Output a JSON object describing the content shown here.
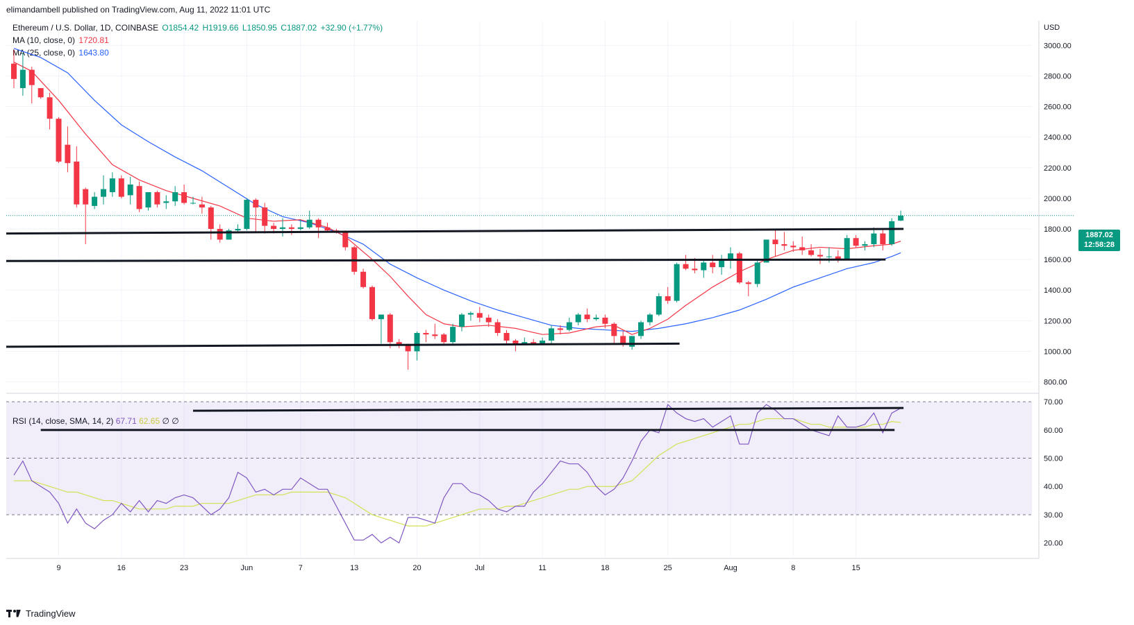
{
  "header": {
    "attribution": "elimandambell published on TradingView.com, Aug 11, 2022 11:01 UTC",
    "symbol": "Ethereum / U.S. Dollar, 1D, COINBASE",
    "ohlc": {
      "o": "O1854.42",
      "h": "H1919.66",
      "l": "L1850.95",
      "c": "C1887.02",
      "change": "+32.90 (+1.77%)"
    },
    "ma10_label": "MA (10, close, 0)",
    "ma10_value": "1720.81",
    "ma25_label": "MA (25, close, 0)",
    "ma25_value": "1643.80",
    "rsi_label": "RSI (14, close, SMA, 14, 2)",
    "rsi_value": "67.71",
    "rsi_sma_value": "62.65",
    "rsi_extra": "∅  ∅"
  },
  "price_tag": {
    "price": "1887.02",
    "countdown": "12:58:28"
  },
  "footer": {
    "brand": "TradingView"
  },
  "colors": {
    "up": "#089981",
    "down": "#F23645",
    "ma10": "#F23645",
    "ma25": "#2962FF",
    "rsi": "#7E57C2",
    "rsi_sma": "#d4e157"
  },
  "chart_data": [
    {
      "type": "candlestick",
      "title": "Ethereum / U.S. Dollar, 1D, COINBASE",
      "currency": "USD",
      "y_ticks": [
        800,
        1000,
        1200,
        1400,
        1600,
        1800,
        2000,
        2200,
        2400,
        2600,
        2800,
        3000
      ],
      "y_tick_labels": [
        "800.00",
        "1000.00",
        "1200.00",
        "1400.00",
        "1600.00",
        "1800.00",
        "2000.00",
        "2200.00",
        "2400.00",
        "2600.00",
        "2800.00",
        "3000.00"
      ],
      "ylim": [
        730,
        3160
      ],
      "x_ticks": [
        "9",
        "16",
        "23",
        "Jun",
        "7",
        "13",
        "20",
        "Jul",
        "11",
        "18",
        "25",
        "Aug",
        "8",
        "15"
      ],
      "x_tick_positions": [
        5,
        12,
        19,
        26,
        32,
        38,
        45,
        52,
        59,
        66,
        73,
        80,
        87,
        94
      ],
      "candles": [
        [
          2880,
          2970,
          2780,
          2720
        ],
        [
          2720,
          2950,
          2840,
          2670
        ],
        [
          2840,
          2860,
          2740,
          2620
        ],
        [
          2720,
          2720,
          2660,
          2650
        ],
        [
          2660,
          2690,
          2520,
          2450
        ],
        [
          2520,
          2530,
          2240,
          2230
        ],
        [
          2350,
          2470,
          2230,
          2170
        ],
        [
          2240,
          2340,
          1960,
          1940
        ],
        [
          2060,
          2070,
          1960,
          1700
        ],
        [
          1950,
          2040,
          2010,
          1930
        ],
        [
          2010,
          2150,
          2060,
          1960
        ],
        [
          2040,
          2170,
          2130,
          2010
        ],
        [
          2130,
          2150,
          2010,
          2000
        ],
        [
          2020,
          2140,
          2090,
          1960
        ],
        [
          2080,
          2110,
          1930,
          1910
        ],
        [
          1940,
          2040,
          2040,
          1920
        ],
        [
          2040,
          2050,
          1960,
          1940
        ],
        [
          1970,
          2020,
          1980,
          1930
        ],
        [
          1980,
          2080,
          2040,
          1950
        ],
        [
          2040,
          2090,
          1970,
          1960
        ],
        [
          1970,
          2010,
          1970,
          1960
        ],
        [
          1960,
          2010,
          1940,
          1900
        ],
        [
          1940,
          1950,
          1800,
          1730
        ],
        [
          1800,
          1830,
          1730,
          1710
        ],
        [
          1730,
          1800,
          1790,
          1730
        ],
        [
          1790,
          1830,
          1800,
          1770
        ],
        [
          1800,
          2000,
          1990,
          1790
        ],
        [
          1990,
          2000,
          1940,
          1780
        ],
        [
          1940,
          1970,
          1820,
          1770
        ],
        [
          1820,
          1840,
          1800,
          1770
        ],
        [
          1800,
          1870,
          1810,
          1750
        ],
        [
          1810,
          1830,
          1800,
          1760
        ],
        [
          1800,
          1860,
          1810,
          1790
        ],
        [
          1810,
          1920,
          1860,
          1800
        ],
        [
          1860,
          1870,
          1810,
          1740
        ],
        [
          1810,
          1840,
          1790,
          1780
        ],
        [
          1790,
          1800,
          1780,
          1770
        ],
        [
          1780,
          1790,
          1680,
          1660
        ],
        [
          1680,
          1690,
          1520,
          1500
        ],
        [
          1520,
          1540,
          1420,
          1410
        ],
        [
          1420,
          1430,
          1210,
          1200
        ],
        [
          1210,
          1240,
          1240,
          1050
        ],
        [
          1240,
          1250,
          1060,
          1020
        ],
        [
          1060,
          1080,
          1040,
          1020
        ],
        [
          1040,
          1050,
          1000,
          880
        ],
        [
          1000,
          1130,
          1120,
          940
        ],
        [
          1120,
          1140,
          1110,
          1060
        ],
        [
          1110,
          1180,
          1100,
          1080
        ],
        [
          1110,
          1120,
          1060,
          1040
        ],
        [
          1060,
          1180,
          1160,
          1050
        ],
        [
          1160,
          1250,
          1240,
          1130
        ],
        [
          1240,
          1260,
          1250,
          1200
        ],
        [
          1250,
          1290,
          1220,
          1190
        ],
        [
          1220,
          1240,
          1190,
          1160
        ],
        [
          1190,
          1210,
          1120,
          1100
        ],
        [
          1120,
          1140,
          1070,
          1040
        ],
        [
          1070,
          1080,
          1050,
          1000
        ],
        [
          1050,
          1090,
          1060,
          1040
        ],
        [
          1060,
          1080,
          1050,
          1040
        ],
        [
          1050,
          1090,
          1070,
          1040
        ],
        [
          1070,
          1170,
          1150,
          1050
        ],
        [
          1150,
          1170,
          1140,
          1110
        ],
        [
          1140,
          1220,
          1190,
          1130
        ],
        [
          1190,
          1250,
          1240,
          1170
        ],
        [
          1240,
          1280,
          1210,
          1190
        ],
        [
          1210,
          1240,
          1220,
          1200
        ],
        [
          1220,
          1240,
          1180,
          1150
        ],
        [
          1180,
          1190,
          1100,
          1050
        ],
        [
          1100,
          1130,
          1050,
          1030
        ],
        [
          1030,
          1100,
          1100,
          1010
        ],
        [
          1100,
          1200,
          1190,
          1080
        ],
        [
          1190,
          1250,
          1240,
          1170
        ],
        [
          1240,
          1380,
          1360,
          1230
        ],
        [
          1360,
          1420,
          1330,
          1310
        ],
        [
          1330,
          1580,
          1570,
          1320
        ],
        [
          1570,
          1630,
          1540,
          1530
        ],
        [
          1540,
          1610,
          1530,
          1510
        ],
        [
          1530,
          1600,
          1580,
          1480
        ],
        [
          1580,
          1630,
          1550,
          1510
        ],
        [
          1550,
          1630,
          1600,
          1500
        ],
        [
          1600,
          1680,
          1640,
          1540
        ],
        [
          1640,
          1650,
          1450,
          1440
        ],
        [
          1450,
          1460,
          1440,
          1360
        ],
        [
          1440,
          1600,
          1580,
          1420
        ],
        [
          1580,
          1660,
          1730,
          1580
        ],
        [
          1730,
          1800,
          1700,
          1620
        ],
        [
          1700,
          1780,
          1690,
          1660
        ],
        [
          1690,
          1720,
          1680,
          1650
        ],
        [
          1680,
          1750,
          1660,
          1630
        ],
        [
          1660,
          1700,
          1630,
          1620
        ],
        [
          1630,
          1670,
          1620,
          1570
        ],
        [
          1620,
          1680,
          1620,
          1580
        ],
        [
          1620,
          1660,
          1600,
          1580
        ],
        [
          1600,
          1760,
          1740,
          1600
        ],
        [
          1740,
          1760,
          1690,
          1680
        ],
        [
          1690,
          1720,
          1700,
          1660
        ],
        [
          1700,
          1810,
          1770,
          1680
        ],
        [
          1770,
          1800,
          1700,
          1660
        ],
        [
          1700,
          1870,
          1850,
          1690
        ],
        [
          1854.42,
          1919.66,
          1887.02,
          1850.95
        ]
      ],
      "ma10": [
        [
          0,
          2890
        ],
        [
          2,
          2830
        ],
        [
          5,
          2640
        ],
        [
          8,
          2420
        ],
        [
          11,
          2220
        ],
        [
          14,
          2120
        ],
        [
          17,
          2050
        ],
        [
          20,
          2000
        ],
        [
          23,
          1950
        ],
        [
          26,
          1870
        ],
        [
          29,
          1850
        ],
        [
          32,
          1860
        ],
        [
          35,
          1810
        ],
        [
          37,
          1750
        ],
        [
          40,
          1600
        ],
        [
          42,
          1490
        ],
        [
          44,
          1360
        ],
        [
          46,
          1240
        ],
        [
          48,
          1180
        ],
        [
          50,
          1160
        ],
        [
          53,
          1170
        ],
        [
          56,
          1150
        ],
        [
          59,
          1110
        ],
        [
          62,
          1120
        ],
        [
          65,
          1160
        ],
        [
          67,
          1170
        ],
        [
          69,
          1110
        ],
        [
          71,
          1150
        ],
        [
          73,
          1210
        ],
        [
          75,
          1300
        ],
        [
          78,
          1420
        ],
        [
          81,
          1520
        ],
        [
          84,
          1600
        ],
        [
          87,
          1660
        ],
        [
          90,
          1680
        ],
        [
          93,
          1670
        ],
        [
          96,
          1690
        ],
        [
          98,
          1700
        ],
        [
          99,
          1720
        ]
      ],
      "ma25": [
        [
          0,
          2980
        ],
        [
          3,
          2920
        ],
        [
          6,
          2820
        ],
        [
          9,
          2640
        ],
        [
          12,
          2480
        ],
        [
          15,
          2370
        ],
        [
          18,
          2270
        ],
        [
          21,
          2180
        ],
        [
          24,
          2070
        ],
        [
          27,
          1960
        ],
        [
          30,
          1880
        ],
        [
          33,
          1840
        ],
        [
          36,
          1780
        ],
        [
          39,
          1700
        ],
        [
          42,
          1570
        ],
        [
          45,
          1480
        ],
        [
          48,
          1400
        ],
        [
          51,
          1330
        ],
        [
          54,
          1270
        ],
        [
          57,
          1220
        ],
        [
          60,
          1170
        ],
        [
          63,
          1150
        ],
        [
          66,
          1140
        ],
        [
          69,
          1130
        ],
        [
          72,
          1150
        ],
        [
          75,
          1180
        ],
        [
          78,
          1220
        ],
        [
          81,
          1270
        ],
        [
          84,
          1340
        ],
        [
          87,
          1420
        ],
        [
          90,
          1480
        ],
        [
          93,
          1540
        ],
        [
          96,
          1580
        ],
        [
          98,
          1620
        ],
        [
          99,
          1643.8
        ]
      ],
      "trendlines": [
        {
          "from": [
            0,
            1770
          ],
          "to": [
            99,
            1800
          ]
        },
        {
          "from": [
            0,
            1590
          ],
          "to": [
            97,
            1600
          ]
        },
        {
          "from": [
            0,
            1030
          ],
          "to": [
            74,
            1050
          ]
        }
      ],
      "last_price": 1887.02
    },
    {
      "type": "line",
      "title": "RSI (14, close, SMA, 14, 2)",
      "y_ticks": [
        20,
        30,
        40,
        50,
        60,
        70
      ],
      "y_tick_labels": [
        "20.00",
        "30.00",
        "40.00",
        "50.00",
        "60.00",
        "70.00"
      ],
      "ylim": [
        15,
        72
      ],
      "bands": {
        "upper": 70,
        "middle": 50,
        "lower": 30
      },
      "series": [
        {
          "values": [
            44,
            49,
            42,
            40,
            38,
            34,
            27,
            32,
            27,
            25,
            28,
            30,
            34,
            31,
            35,
            31,
            35,
            34,
            36,
            37,
            36,
            33,
            30,
            32,
            36,
            45,
            43,
            38,
            39,
            37,
            39,
            39,
            43,
            41,
            39,
            39,
            33,
            27,
            21,
            21,
            23,
            20,
            22,
            20,
            29,
            29,
            28,
            27,
            36,
            41,
            41,
            38,
            37,
            35,
            32,
            31,
            33,
            33,
            38,
            41,
            45,
            49,
            48,
            48,
            45,
            40,
            37,
            39,
            43,
            49,
            56,
            60,
            59,
            69,
            66,
            64,
            63,
            64,
            61,
            63,
            65,
            55,
            55,
            66,
            69,
            67,
            64,
            64,
            62,
            60,
            59,
            58,
            65,
            61,
            61,
            62,
            66,
            59,
            66,
            67.71
          ]
        },
        {
          "values": [
            42,
            42,
            42,
            41,
            40,
            39,
            38,
            38,
            37,
            36,
            35,
            35,
            34,
            33,
            32,
            32,
            32,
            32,
            33,
            33,
            33,
            34,
            34,
            34,
            34,
            35,
            36,
            37,
            37,
            37,
            37,
            38,
            38,
            38,
            38,
            38,
            37,
            36,
            34,
            32,
            30,
            29,
            28,
            27,
            26,
            26,
            26,
            27,
            28,
            29,
            30,
            31,
            32,
            32,
            32,
            33,
            33,
            34,
            35,
            36,
            37,
            38,
            39,
            39,
            40,
            40,
            40,
            40,
            41,
            42,
            45,
            48,
            51,
            53,
            55,
            56,
            57,
            58,
            59,
            60,
            61,
            62,
            62,
            63,
            64,
            64,
            64,
            64,
            63,
            62,
            62,
            61,
            61,
            61,
            61,
            61,
            62,
            62,
            63,
            62.65
          ]
        }
      ],
      "trendlines": [
        {
          "from": [
            20,
            66.8
          ],
          "to": [
            99,
            67.8
          ]
        },
        {
          "from": [
            3,
            60
          ],
          "to": [
            98,
            60
          ]
        }
      ]
    }
  ]
}
